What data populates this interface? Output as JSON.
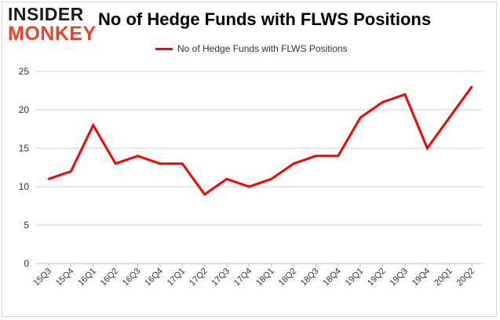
{
  "title": "No of Hedge Funds with FLWS Positions",
  "logo": {
    "line1": "INSIDER",
    "line2": "MONKEY"
  },
  "colors": {
    "line": "#ff0000",
    "grid": "#d0d0d0",
    "logo_accent": "#e8432c"
  },
  "chart_data": {
    "type": "line",
    "title": "No of Hedge Funds with FLWS Positions",
    "categories": [
      "15Q3",
      "15Q4",
      "16Q1",
      "16Q2",
      "16Q3",
      "16Q4",
      "17Q1",
      "17Q2",
      "17Q3",
      "17Q4",
      "18Q1",
      "18Q2",
      "18Q3",
      "18Q4",
      "19Q1",
      "19Q2",
      "19Q3",
      "19Q4",
      "20Q1",
      "20Q2"
    ],
    "series": [
      {
        "name": "No of Hedge Funds with FLWS Positions",
        "values": [
          11,
          12,
          18,
          13,
          14,
          13,
          13,
          9,
          11,
          10,
          11,
          13,
          14,
          14,
          19,
          21,
          22,
          15,
          19,
          23
        ]
      }
    ],
    "ylim": [
      0,
      25
    ],
    "yticks": [
      0,
      5,
      10,
      15,
      20,
      25
    ],
    "grid": true,
    "legend": "top-center",
    "xlabel": "",
    "ylabel": ""
  }
}
